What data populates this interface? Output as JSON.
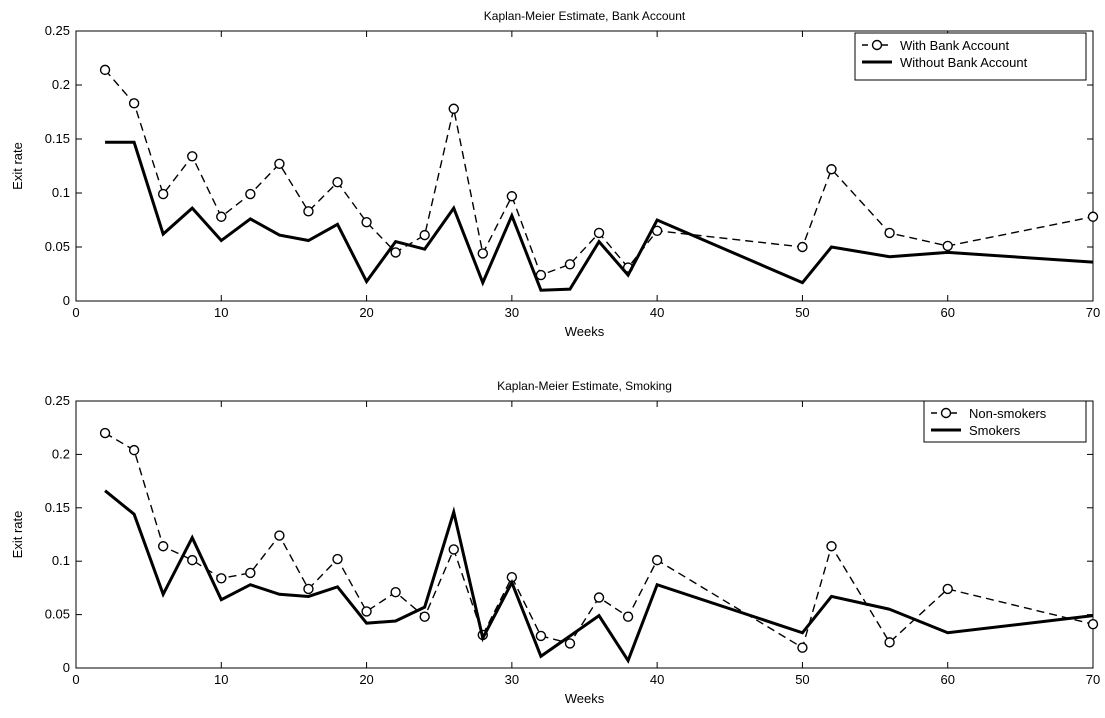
{
  "chart_data": [
    {
      "type": "line",
      "title": "Kaplan-Meier Estimate, Bank Account",
      "xlabel": "Weeks",
      "ylabel": "Exit rate",
      "xlim": [
        0,
        70
      ],
      "ylim": [
        0,
        0.25
      ],
      "xticks": [
        0,
        10,
        20,
        30,
        40,
        50,
        60,
        70
      ],
      "yticks": [
        0,
        0.05,
        0.1,
        0.15,
        0.2,
        0.25
      ],
      "xtick_labels": [
        "0",
        "10",
        "20",
        "30",
        "40",
        "50",
        "60",
        "70"
      ],
      "ytick_labels": [
        "0",
        "0.05",
        "0.1",
        "0.15",
        "0.2",
        "0.25"
      ],
      "grid": false,
      "legend_position": "top-right",
      "series": [
        {
          "name": "With Bank Account",
          "style": "dashed-circle",
          "x": [
            2,
            4,
            6,
            8,
            10,
            12,
            14,
            16,
            18,
            20,
            22,
            24,
            26,
            28,
            30,
            32,
            34,
            36,
            38,
            40,
            50,
            52,
            56,
            60,
            70
          ],
          "y": [
            0.214,
            0.183,
            0.099,
            0.134,
            0.078,
            0.099,
            0.127,
            0.083,
            0.11,
            0.073,
            0.045,
            0.061,
            0.178,
            0.044,
            0.097,
            0.024,
            0.034,
            0.063,
            0.031,
            0.065,
            0.05,
            0.122,
            0.063,
            0.051,
            0.078
          ]
        },
        {
          "name": "Without Bank Account",
          "style": "solid",
          "x": [
            2,
            4,
            6,
            8,
            10,
            12,
            14,
            16,
            18,
            20,
            22,
            24,
            26,
            28,
            30,
            32,
            34,
            36,
            38,
            40,
            50,
            52,
            56,
            60,
            70
          ],
          "y": [
            0.147,
            0.147,
            0.062,
            0.086,
            0.056,
            0.076,
            0.061,
            0.056,
            0.071,
            0.018,
            0.055,
            0.048,
            0.086,
            0.017,
            0.079,
            0.01,
            0.011,
            0.055,
            0.024,
            0.075,
            0.017,
            0.05,
            0.041,
            0.045,
            0.036
          ]
        }
      ]
    },
    {
      "type": "line",
      "title": "Kaplan-Meier Estimate, Smoking",
      "xlabel": "Weeks",
      "ylabel": "Exit rate",
      "xlim": [
        0,
        70
      ],
      "ylim": [
        0,
        0.25
      ],
      "xticks": [
        0,
        10,
        20,
        30,
        40,
        50,
        60,
        70
      ],
      "yticks": [
        0,
        0.05,
        0.1,
        0.15,
        0.2,
        0.25
      ],
      "xtick_labels": [
        "0",
        "10",
        "20",
        "30",
        "40",
        "50",
        "60",
        "70"
      ],
      "ytick_labels": [
        "0",
        "0.05",
        "0.1",
        "0.15",
        "0.2",
        "0.25"
      ],
      "grid": false,
      "legend_position": "top-right",
      "series": [
        {
          "name": "Non-smokers",
          "style": "dashed-circle",
          "x": [
            2,
            4,
            6,
            8,
            10,
            12,
            14,
            16,
            18,
            20,
            22,
            24,
            26,
            28,
            30,
            32,
            34,
            36,
            38,
            40,
            50,
            52,
            56,
            60,
            70
          ],
          "y": [
            0.22,
            0.204,
            0.114,
            0.101,
            0.084,
            0.089,
            0.124,
            0.074,
            0.102,
            0.053,
            0.071,
            0.048,
            0.111,
            0.031,
            0.085,
            0.03,
            0.023,
            0.066,
            0.048,
            0.101,
            0.019,
            0.114,
            0.024,
            0.074,
            0.041
          ]
        },
        {
          "name": "Smokers",
          "style": "solid",
          "x": [
            2,
            4,
            6,
            8,
            10,
            12,
            14,
            16,
            18,
            20,
            22,
            24,
            26,
            28,
            30,
            32,
            34,
            36,
            38,
            40,
            50,
            52,
            56,
            60,
            70
          ],
          "y": [
            0.166,
            0.144,
            0.069,
            0.122,
            0.064,
            0.078,
            0.069,
            0.067,
            0.076,
            0.042,
            0.044,
            0.057,
            0.146,
            0.028,
            0.08,
            0.011,
            0.03,
            0.049,
            0.007,
            0.078,
            0.033,
            0.067,
            0.055,
            0.033,
            0.049
          ]
        }
      ]
    }
  ]
}
